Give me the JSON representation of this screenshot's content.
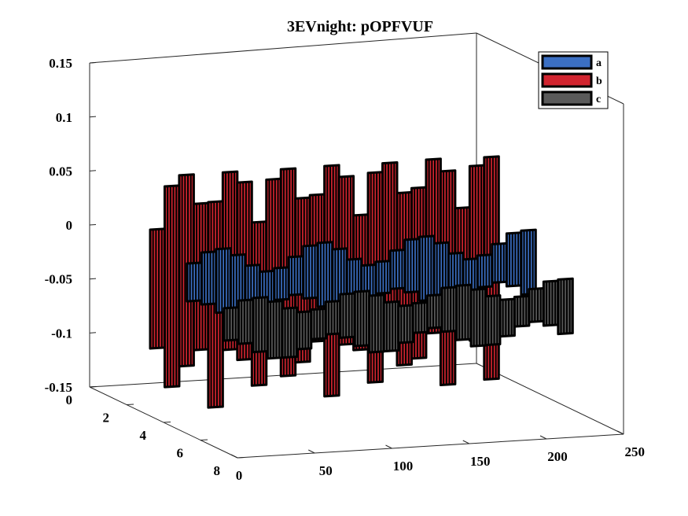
{
  "chart_data": {
    "type": "bar3",
    "title": "3EVnight: pOPFVUF",
    "xlabel": "",
    "ylabel": "",
    "zlabel": "",
    "x_ticks": [
      "0",
      "50",
      "100",
      "150",
      "200",
      "250"
    ],
    "y_ticks": [
      "0",
      "2",
      "4",
      "6",
      "8"
    ],
    "z_ticks": [
      "0.15",
      "0.1",
      "0.05",
      "0",
      "-0.05",
      "-0.1",
      "-0.15"
    ],
    "xlim": [
      0,
      250
    ],
    "ylim": [
      0,
      8
    ],
    "zlim": [
      -0.15,
      0.15
    ],
    "legend_position": "top-right",
    "series": [
      {
        "name": "a",
        "color": "#3B6FC3",
        "row": 5,
        "range_approx": [
          -0.03,
          0.02
        ]
      },
      {
        "name": "b",
        "color": "#D1242F",
        "row": 3,
        "range_approx": [
          -0.15,
          0.08
        ]
      },
      {
        "name": "c",
        "color": "#5A5A5A",
        "row": 7,
        "range_approx": [
          -0.06,
          -0.02
        ]
      }
    ]
  }
}
